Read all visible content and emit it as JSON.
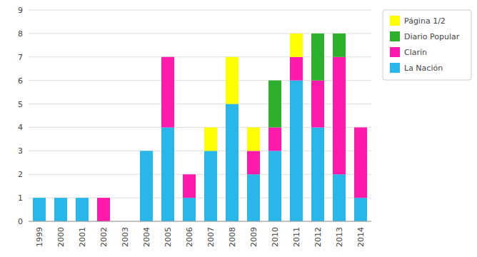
{
  "chart_data": {
    "type": "bar",
    "stacked": true,
    "categories": [
      "1999",
      "2000",
      "2001",
      "2002",
      "2003",
      "2004",
      "2005",
      "2006",
      "2007",
      "2008",
      "2009",
      "2010",
      "2011",
      "2012",
      "2013",
      "2014"
    ],
    "series": [
      {
        "name": "La Nación",
        "color": "#29b6e8",
        "values": [
          1,
          1,
          1,
          0,
          0,
          3,
          4,
          1,
          3,
          5,
          2,
          3,
          6,
          4,
          2,
          1
        ]
      },
      {
        "name": "Clarín",
        "color": "#ff1aac",
        "values": [
          0,
          0,
          0,
          1,
          0,
          0,
          3,
          1,
          0,
          0,
          1,
          1,
          1,
          2,
          5,
          3
        ]
      },
      {
        "name": "Diario Popular",
        "color": "#2db12d",
        "values": [
          0,
          0,
          0,
          0,
          0,
          0,
          0,
          0,
          0,
          0,
          0,
          2,
          0,
          2,
          1,
          0
        ]
      },
      {
        "name": "Página 1/2",
        "color": "#ffff00",
        "values": [
          0,
          0,
          0,
          0,
          0,
          0,
          0,
          0,
          1,
          2,
          1,
          0,
          1,
          0,
          0,
          0
        ]
      }
    ],
    "ylim": [
      0,
      9
    ],
    "yticks": [
      0,
      1,
      2,
      3,
      4,
      5,
      6,
      7,
      8,
      9
    ],
    "grid": true,
    "legend": "right"
  }
}
